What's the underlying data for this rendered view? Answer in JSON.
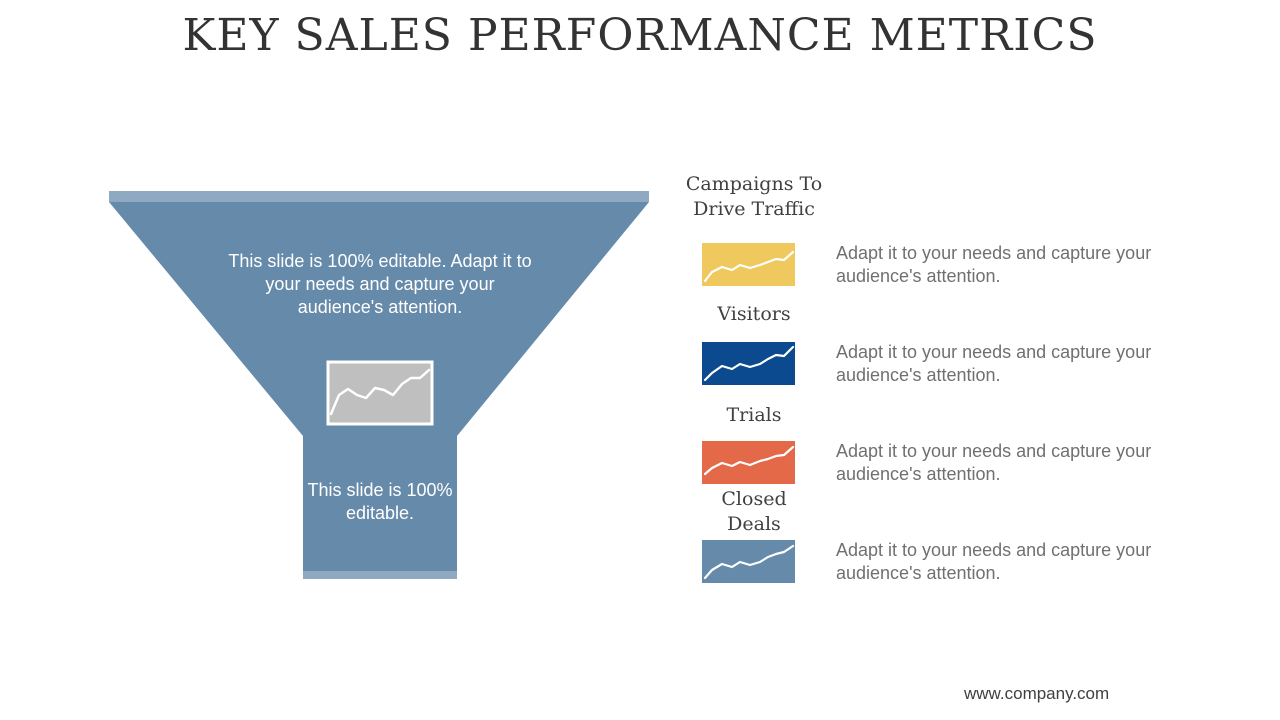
{
  "slide": {
    "title": "KEY SALES PERFORMANCE METRICS",
    "footer": "www.company.com"
  },
  "funnel": {
    "color": "#668aaa",
    "rim_color": "#8ea9c1",
    "top_text": "This slide is 100% editable. Adapt it to your needs and capture your audience's attention.",
    "bottom_text": "This slide is 100% editable.",
    "icon": "line-chart-icon",
    "icon_color": "#bfbfbf"
  },
  "stages": [
    {
      "label": "Campaigns To Drive Traffic",
      "color": "#efc95e",
      "icon": "line-chart-icon",
      "description": "Adapt it to your needs and capture your audience's attention."
    },
    {
      "label": "Visitors",
      "color": "#0b4a8e",
      "icon": "line-chart-icon",
      "description": "Adapt it to your needs and capture your audience's attention."
    },
    {
      "label": "Trials",
      "color": "#e36948",
      "icon": "line-chart-icon",
      "description": "Adapt it to your needs and capture your audience's attention."
    },
    {
      "label": "Closed Deals",
      "color": "#668aaa",
      "icon": "line-chart-icon",
      "description": "Adapt it to your needs and capture your audience's attention."
    }
  ]
}
